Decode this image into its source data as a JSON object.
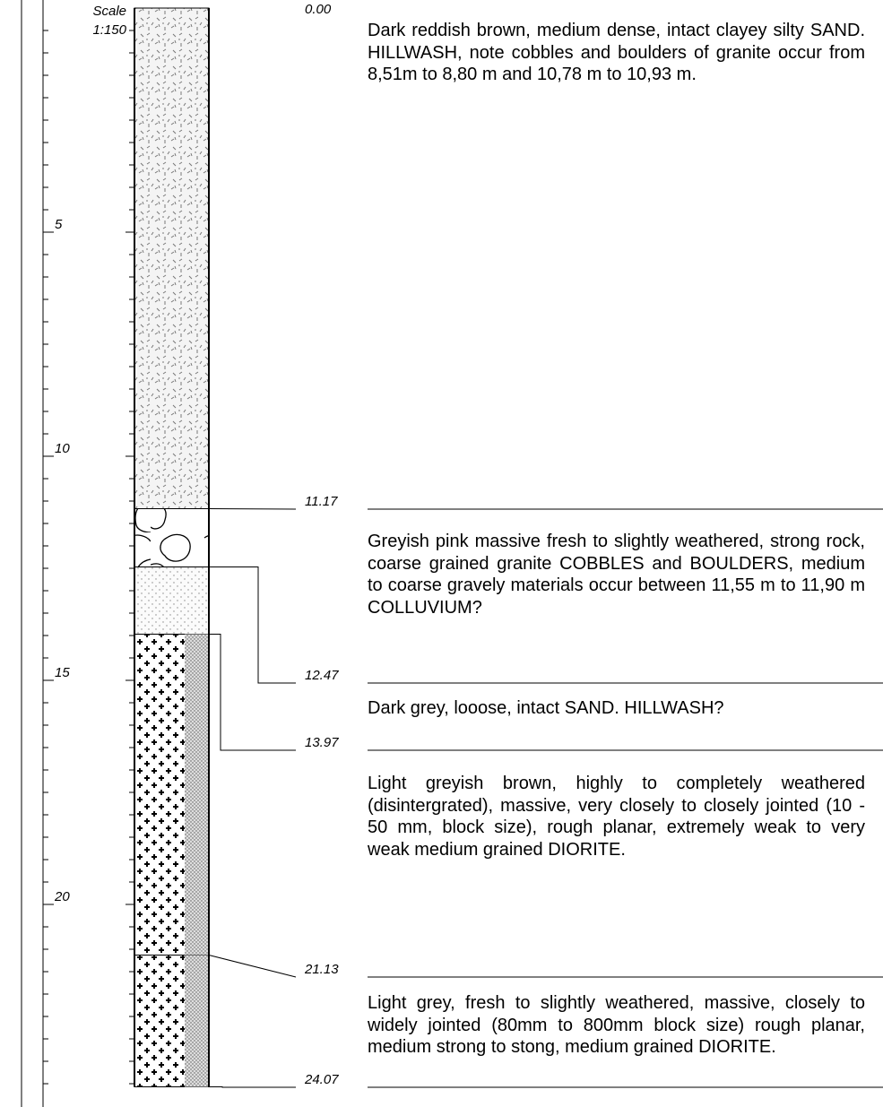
{
  "scale": {
    "label": "Scale",
    "ratio": "1:150",
    "ticks": [
      5,
      10,
      15,
      20
    ]
  },
  "boundaries": [
    {
      "value": 0,
      "label": "0.00"
    },
    11.17,
    12.47,
    13.97,
    21.13,
    24.07
  ],
  "layers": [
    {
      "description": "Dark reddish brown, medium dense, intact clayey silty SAND. HILLWASH, note cobbles and boulders of granite occur from 8,51m to 8,80 m and 10,78 m to 10,93 m."
    },
    {
      "description": "Greyish pink massive fresh to slightly weathered, strong rock, coarse grained granite COBBLES and BOULDERS, medium to coarse gravely materials occur between 11,55 m to 11,90 m COLLUVIUM?"
    },
    {
      "description": "Dark grey, looose, intact SAND. HILLWASH?"
    },
    {
      "description": "Light greyish brown, highly to completely weathered (disintergrated), massive, very closely to closely jointed (10 - 50 mm, block size), rough planar, extremely weak to very weak medium grained DIORITE."
    },
    {
      "description": "Light grey, fresh to slightly weathered, massive, closely to widely jointed (80mm to 800mm block size) rough planar, medium strong to stong, medium grained DIORITE."
    }
  ]
}
